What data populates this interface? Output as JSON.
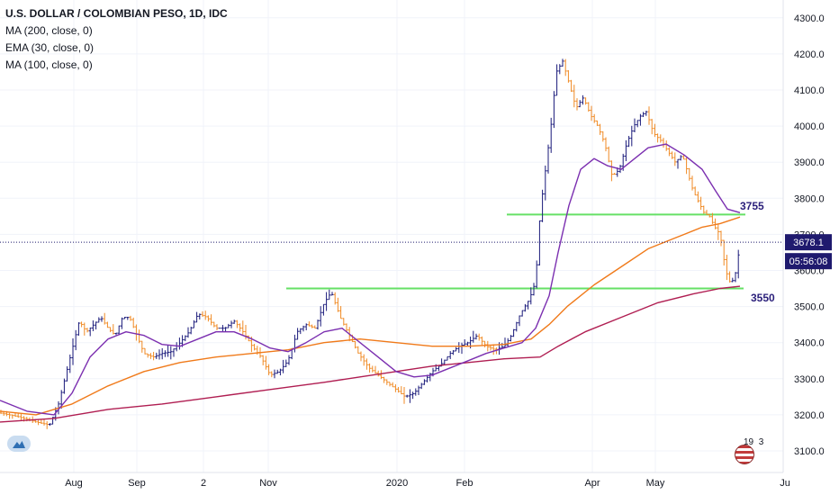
{
  "legend": {
    "title": "U.S. DOLLAR / COLOMBIAN PESO, 1D, IDC",
    "ma200": "MA (200, close, 0)",
    "ema30": "EMA (30, close, 0)",
    "ma100": "MA (100, close, 0)"
  },
  "badge": {
    "count": "19",
    "extra": "3"
  },
  "colors": {
    "bars": "#1a1a7a",
    "down_bars": "#f08a24",
    "ma30": "#7b2fb0",
    "ema": "#f07a1a",
    "ma200": "#b01e52",
    "support": "#66e066",
    "last_price_bg": "#1f1a6e"
  },
  "chart_data": {
    "type": "ohlc",
    "y_axis": {
      "min": 3100,
      "max": 4300,
      "ticks": [
        3100,
        3200,
        3300,
        3400,
        3500,
        3600,
        3700,
        3800,
        3900,
        4000,
        4100,
        4200,
        4300
      ]
    },
    "x_ticks": [
      "Aug",
      "Sep",
      "2",
      "Nov",
      "2020",
      "Feb",
      "Apr",
      "May",
      "Ju"
    ],
    "horizontal_levels": [
      {
        "label": "3755",
        "value": 3755
      },
      {
        "label": "3550",
        "value": 3550
      }
    ],
    "last_price": "3678.1",
    "countdown": "05:56:08",
    "price_path": [
      [
        0,
        3205
      ],
      [
        20,
        3195
      ],
      [
        40,
        3180
      ],
      [
        55,
        3172
      ],
      [
        65,
        3230
      ],
      [
        72,
        3300
      ],
      [
        80,
        3380
      ],
      [
        88,
        3460
      ],
      [
        96,
        3430
      ],
      [
        104,
        3450
      ],
      [
        112,
        3470
      ],
      [
        120,
        3440
      ],
      [
        128,
        3420
      ],
      [
        136,
        3470
      ],
      [
        144,
        3470
      ],
      [
        152,
        3420
      ],
      [
        160,
        3370
      ],
      [
        170,
        3360
      ],
      [
        180,
        3370
      ],
      [
        190,
        3375
      ],
      [
        200,
        3400
      ],
      [
        210,
        3430
      ],
      [
        220,
        3480
      ],
      [
        230,
        3470
      ],
      [
        240,
        3440
      ],
      [
        250,
        3440
      ],
      [
        260,
        3460
      ],
      [
        270,
        3430
      ],
      [
        280,
        3390
      ],
      [
        290,
        3360
      ],
      [
        300,
        3310
      ],
      [
        310,
        3320
      ],
      [
        320,
        3350
      ],
      [
        330,
        3430
      ],
      [
        340,
        3450
      ],
      [
        350,
        3440
      ],
      [
        360,
        3510
      ],
      [
        368,
        3540
      ],
      [
        378,
        3470
      ],
      [
        388,
        3420
      ],
      [
        398,
        3370
      ],
      [
        410,
        3330
      ],
      [
        420,
        3310
      ],
      [
        430,
        3290
      ],
      [
        440,
        3270
      ],
      [
        450,
        3250
      ],
      [
        460,
        3260
      ],
      [
        470,
        3290
      ],
      [
        480,
        3320
      ],
      [
        490,
        3340
      ],
      [
        500,
        3370
      ],
      [
        510,
        3390
      ],
      [
        520,
        3400
      ],
      [
        530,
        3420
      ],
      [
        540,
        3390
      ],
      [
        550,
        3380
      ],
      [
        560,
        3390
      ],
      [
        568,
        3420
      ],
      [
        578,
        3480
      ],
      [
        588,
        3520
      ],
      [
        595,
        3570
      ],
      [
        600,
        3760
      ],
      [
        606,
        3880
      ],
      [
        612,
        4000
      ],
      [
        618,
        4150
      ],
      [
        625,
        4180
      ],
      [
        632,
        4120
      ],
      [
        640,
        4050
      ],
      [
        648,
        4080
      ],
      [
        656,
        4030
      ],
      [
        664,
        4000
      ],
      [
        672,
        3950
      ],
      [
        680,
        3860
      ],
      [
        688,
        3880
      ],
      [
        696,
        3950
      ],
      [
        704,
        4000
      ],
      [
        712,
        4030
      ],
      [
        718,
        4040
      ],
      [
        726,
        3980
      ],
      [
        734,
        3960
      ],
      [
        742,
        3930
      ],
      [
        750,
        3900
      ],
      [
        758,
        3920
      ],
      [
        764,
        3870
      ],
      [
        770,
        3820
      ],
      [
        776,
        3790
      ],
      [
        782,
        3760
      ],
      [
        788,
        3750
      ],
      [
        794,
        3720
      ],
      [
        800,
        3700
      ],
      [
        806,
        3600
      ],
      [
        812,
        3560
      ],
      [
        818,
        3600
      ],
      [
        822,
        3678
      ]
    ],
    "ma_30": [
      [
        0,
        3240
      ],
      [
        30,
        3210
      ],
      [
        60,
        3200
      ],
      [
        80,
        3260
      ],
      [
        100,
        3360
      ],
      [
        120,
        3410
      ],
      [
        140,
        3430
      ],
      [
        160,
        3420
      ],
      [
        180,
        3395
      ],
      [
        200,
        3390
      ],
      [
        220,
        3410
      ],
      [
        240,
        3430
      ],
      [
        260,
        3430
      ],
      [
        280,
        3410
      ],
      [
        300,
        3385
      ],
      [
        320,
        3375
      ],
      [
        340,
        3400
      ],
      [
        360,
        3430
      ],
      [
        380,
        3440
      ],
      [
        400,
        3400
      ],
      [
        420,
        3360
      ],
      [
        440,
        3320
      ],
      [
        460,
        3305
      ],
      [
        480,
        3310
      ],
      [
        500,
        3330
      ],
      [
        520,
        3350
      ],
      [
        540,
        3370
      ],
      [
        560,
        3385
      ],
      [
        580,
        3400
      ],
      [
        595,
        3440
      ],
      [
        610,
        3530
      ],
      [
        620,
        3650
      ],
      [
        632,
        3780
      ],
      [
        645,
        3880
      ],
      [
        660,
        3910
      ],
      [
        675,
        3890
      ],
      [
        690,
        3880
      ],
      [
        705,
        3910
      ],
      [
        720,
        3940
      ],
      [
        740,
        3950
      ],
      [
        760,
        3920
      ],
      [
        780,
        3880
      ],
      [
        795,
        3820
      ],
      [
        808,
        3770
      ],
      [
        822,
        3760
      ]
    ],
    "ema_30_orange": [
      [
        0,
        3210
      ],
      [
        40,
        3200
      ],
      [
        80,
        3230
      ],
      [
        120,
        3280
      ],
      [
        160,
        3320
      ],
      [
        200,
        3345
      ],
      [
        240,
        3360
      ],
      [
        280,
        3370
      ],
      [
        320,
        3380
      ],
      [
        360,
        3400
      ],
      [
        400,
        3410
      ],
      [
        440,
        3400
      ],
      [
        480,
        3390
      ],
      [
        520,
        3390
      ],
      [
        560,
        3395
      ],
      [
        590,
        3410
      ],
      [
        610,
        3450
      ],
      [
        630,
        3500
      ],
      [
        660,
        3560
      ],
      [
        690,
        3610
      ],
      [
        720,
        3660
      ],
      [
        750,
        3690
      ],
      [
        780,
        3720
      ],
      [
        800,
        3730
      ],
      [
        822,
        3748
      ]
    ],
    "ma_200": [
      [
        0,
        3180
      ],
      [
        60,
        3190
      ],
      [
        120,
        3215
      ],
      [
        180,
        3230
      ],
      [
        240,
        3250
      ],
      [
        300,
        3270
      ],
      [
        360,
        3290
      ],
      [
        400,
        3305
      ],
      [
        440,
        3320
      ],
      [
        480,
        3335
      ],
      [
        520,
        3345
      ],
      [
        560,
        3355
      ],
      [
        600,
        3360
      ],
      [
        620,
        3390
      ],
      [
        650,
        3430
      ],
      [
        690,
        3470
      ],
      [
        730,
        3510
      ],
      [
        770,
        3535
      ],
      [
        800,
        3550
      ],
      [
        822,
        3556
      ]
    ]
  }
}
